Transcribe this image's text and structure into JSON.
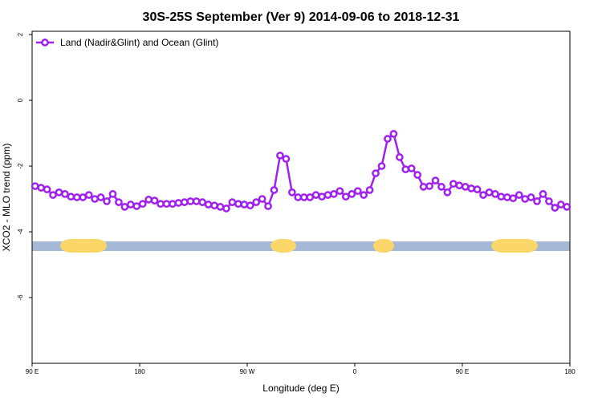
{
  "chart_data": {
    "type": "line",
    "title": "30S-25S September (Ver 9)   2014-09-06 to 2018-12-31",
    "x_label": "Longitude (deg E)",
    "y_label": "XCO2 - MLO trend (ppm)",
    "x": [
      92.5,
      97.5,
      102.5,
      107.5,
      112.5,
      117.5,
      122.5,
      127.5,
      132.5,
      137.5,
      142.5,
      147.5,
      152.5,
      157.5,
      162.5,
      167.5,
      172.5,
      177.5,
      182.5,
      187.5,
      192.5,
      197.5,
      202.5,
      207.5,
      212.5,
      217.5,
      222.5,
      227.5,
      232.5,
      237.5,
      242.5,
      247.5,
      252.5,
      257.5,
      262.5,
      267.5,
      272.5,
      277.5,
      282.5,
      287.5,
      292.5,
      297.5,
      302.5,
      307.5,
      312.5,
      317.5,
      322.5,
      327.5,
      332.5,
      337.5,
      342.5,
      347.5,
      352.5,
      357.5,
      362.5,
      367.5,
      372.5,
      377.5,
      382.5,
      387.5,
      392.5,
      397.5,
      402.5,
      407.5,
      412.5,
      417.5,
      422.5,
      427.5,
      432.5,
      437.5,
      442.5,
      447.5,
      452.5,
      457.5,
      462.5,
      467.5,
      472.5,
      477.5,
      482.5,
      487.5,
      492.5,
      497.5,
      502.5,
      507.5,
      512.5,
      517.5,
      522.5,
      527.5,
      532.5,
      537.5
    ],
    "series": [
      {
        "name": "Land (Nadir&Glint) and Ocean (Glint)",
        "color": "#a020f0",
        "values": [
          -2.61,
          -2.66,
          -2.71,
          -2.88,
          -2.8,
          -2.85,
          -2.93,
          -2.95,
          -2.95,
          -2.88,
          -3.0,
          -2.95,
          -3.07,
          -2.85,
          -3.1,
          -3.24,
          -3.17,
          -3.22,
          -3.15,
          -3.02,
          -3.05,
          -3.15,
          -3.15,
          -3.15,
          -3.12,
          -3.1,
          -3.07,
          -3.07,
          -3.1,
          -3.17,
          -3.2,
          -3.24,
          -3.29,
          -3.1,
          -3.15,
          -3.17,
          -3.2,
          -3.1,
          -3.0,
          -3.22,
          -2.73,
          -1.68,
          -1.78,
          -2.8,
          -2.95,
          -2.95,
          -2.95,
          -2.88,
          -2.93,
          -2.88,
          -2.85,
          -2.76,
          -2.93,
          -2.85,
          -2.76,
          -2.88,
          -2.73,
          -2.22,
          -2.0,
          -1.17,
          -1.02,
          -1.73,
          -2.1,
          -2.07,
          -2.27,
          -2.63,
          -2.61,
          -2.44,
          -2.63,
          -2.8,
          -2.54,
          -2.59,
          -2.63,
          -2.68,
          -2.71,
          -2.88,
          -2.8,
          -2.85,
          -2.93,
          -2.95,
          -2.98,
          -2.88,
          -3.0,
          -2.95,
          -3.07,
          -2.85,
          -3.07,
          -3.27,
          -3.17,
          -3.24
        ]
      }
    ],
    "xlim": [
      90,
      540
    ],
    "xticks": [
      {
        "value": 90,
        "label": "90 E"
      },
      180,
      {
        "value": 270,
        "label": "90 W"
      },
      {
        "value": 360,
        "label": "0"
      },
      {
        "value": 450,
        "label": "90 E"
      },
      {
        "value": 540,
        "label": "180"
      }
    ],
    "ylim": [
      -8,
      2.1
    ],
    "yticks": [
      -6,
      -4,
      -2,
      0,
      2
    ],
    "legend": "top-left"
  }
}
